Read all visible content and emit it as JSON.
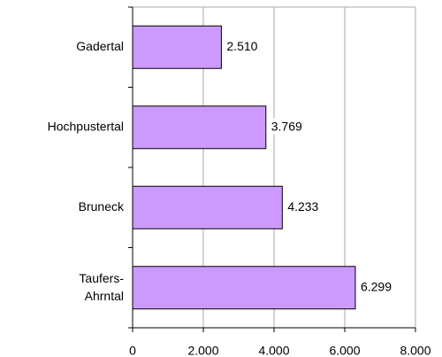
{
  "chart_data": {
    "type": "bar",
    "orientation": "horizontal",
    "categories": [
      "Gadertal",
      "Hochpustertal",
      "Bruneck",
      "Taufers-Ahrntal"
    ],
    "values": [
      2510,
      3769,
      4233,
      6299
    ],
    "value_labels": [
      "2.510",
      "3.769",
      "4.233",
      "6.299"
    ],
    "color": "#cc99ff",
    "xlim": [
      0,
      8000
    ],
    "xticks": [
      0,
      {
        "value": 2000,
        "label": "2.000"
      },
      {
        "value": 4000,
        "label": "4.000"
      },
      {
        "value": 6000,
        "label": "6.000"
      },
      {
        "value": 8000,
        "label": "8.000"
      }
    ],
    "grid": true
  }
}
